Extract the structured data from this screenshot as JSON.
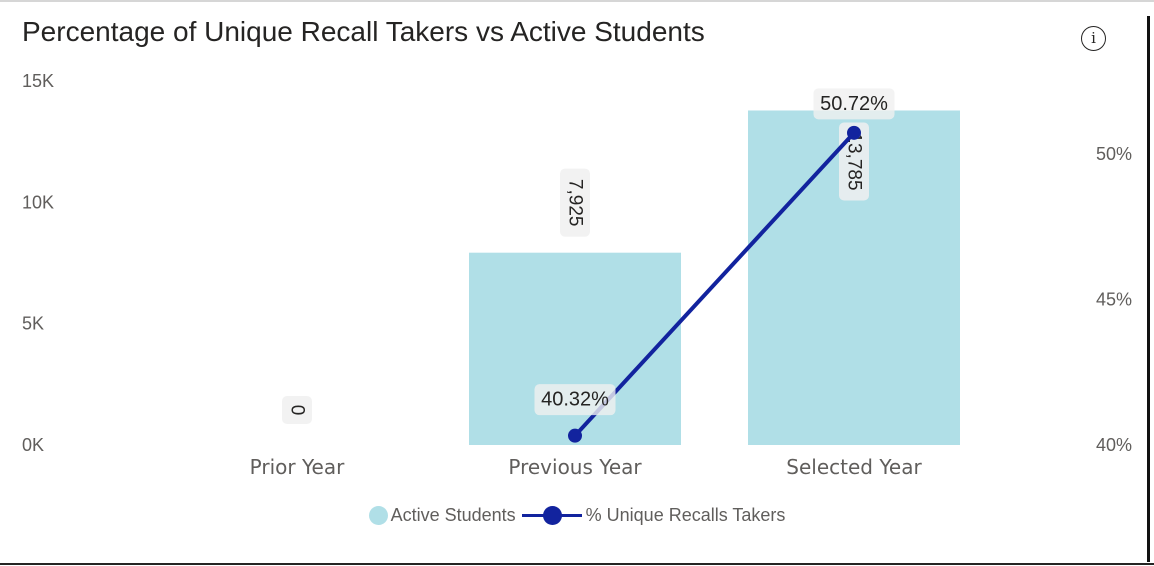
{
  "chart_data": {
    "type": "bar+line",
    "title": "Percentage of Unique Recall Takers vs Active Students",
    "categories": [
      "Prior Year",
      "Previous Year",
      "Selected Year"
    ],
    "series": [
      {
        "name": "Active Students",
        "type": "bar",
        "axis": "left",
        "values": [
          0,
          7925,
          13785
        ],
        "labels": [
          "0",
          "7,925",
          "13,785"
        ],
        "color": "#b0dfe7"
      },
      {
        "name": "% Unique Recalls Takers",
        "type": "line",
        "axis": "right",
        "values": [
          null,
          40.32,
          50.72
        ],
        "labels": [
          "",
          "40.32%",
          "50.72%"
        ],
        "color": "#12239e"
      }
    ],
    "y_left": {
      "min": 0,
      "max": 15000,
      "ticks": [
        0,
        5000,
        10000,
        15000
      ],
      "tick_labels": [
        "0K",
        "5K",
        "10K",
        "15K"
      ]
    },
    "y_right": {
      "min": 40,
      "max": 52.5,
      "ticks": [
        40,
        45,
        50
      ],
      "tick_labels": [
        "40%",
        "45%",
        "50%"
      ]
    },
    "grid": false,
    "legend_position": "bottom-center"
  },
  "legend": {
    "bar_label": "Active Students",
    "line_label": "% Unique Recalls Takers"
  },
  "info_icon": "i"
}
